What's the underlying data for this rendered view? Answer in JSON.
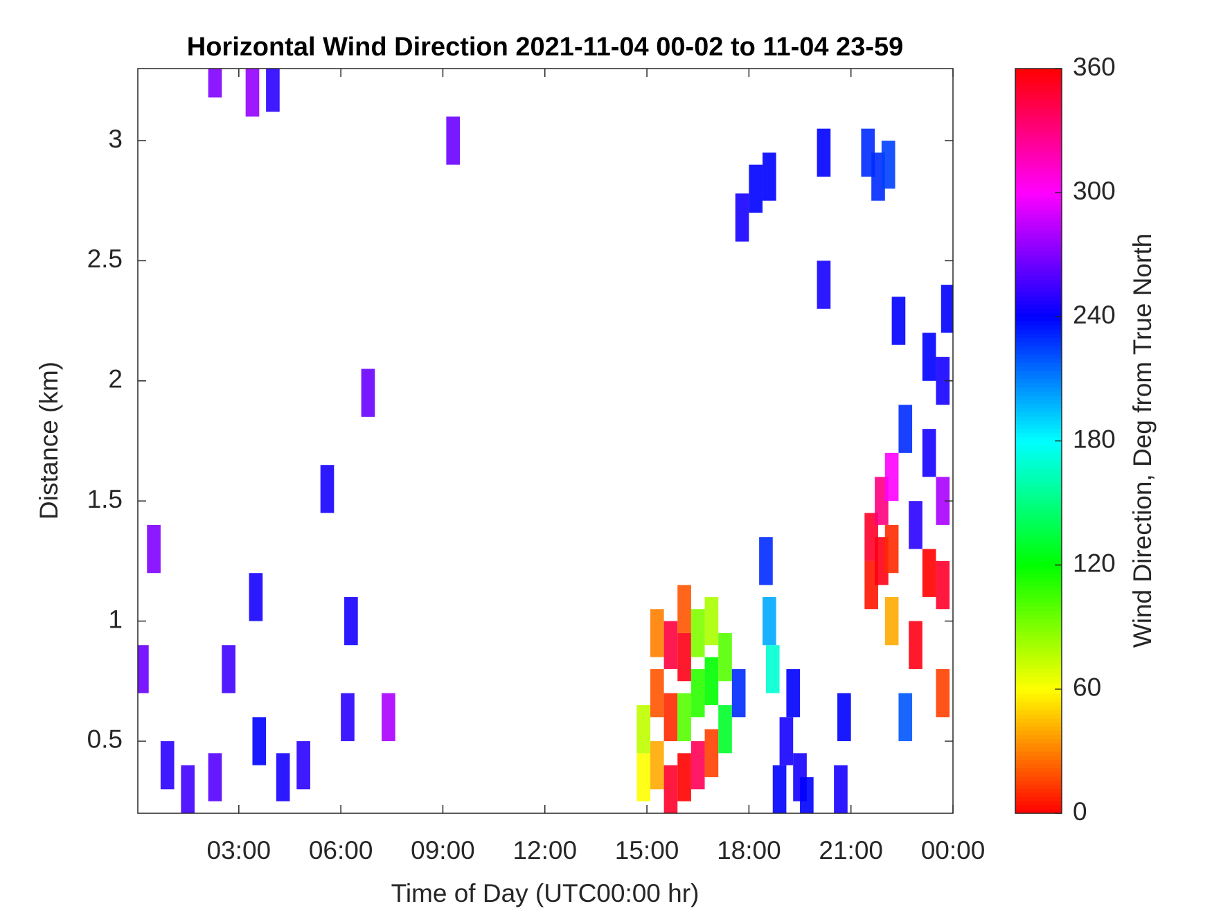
{
  "chart_data": {
    "type": "heatmap",
    "title": "Horizontal Wind Direction 2021-11-04 00-02 to 11-04 23-59",
    "xlabel": "Time of Day (UTC00:00 hr)",
    "ylabel": "Distance (km)",
    "colorbar_label": "Wind Direction, Deg from True North",
    "colormap": "hsv",
    "xlim": [
      0.03,
      24
    ],
    "xticks": [
      {
        "value": 3,
        "label": "03:00"
      },
      {
        "value": 6,
        "label": "06:00"
      },
      {
        "value": 9,
        "label": "09:00"
      },
      {
        "value": 12,
        "label": "12:00"
      },
      {
        "value": 15,
        "label": "15:00"
      },
      {
        "value": 18,
        "label": "18:00"
      },
      {
        "value": 21,
        "label": "21:00"
      },
      {
        "value": 24,
        "label": "00:00"
      }
    ],
    "ylim": [
      0.2,
      3.3
    ],
    "yticks": [
      0.5,
      1,
      1.5,
      2,
      2.5,
      3
    ],
    "clim": [
      0,
      360
    ],
    "cticks": [
      0,
      60,
      120,
      180,
      240,
      300,
      360
    ],
    "x": [
      0.15,
      0.5,
      0.9,
      1.5,
      2.3,
      2.7,
      3.5,
      3.6,
      4.3,
      4.9,
      5.6,
      6.2,
      6.3,
      6.8,
      7.4,
      2.3,
      3.4,
      4.0,
      9.3,
      14.9,
      14.9,
      15.3,
      15.3,
      15.3,
      15.7,
      15.7,
      15.7,
      16.1,
      16.1,
      16.1,
      16.1,
      16.5,
      16.5,
      16.5,
      16.9,
      16.9,
      16.9,
      17.3,
      17.3,
      17.7,
      18.5,
      18.6,
      18.7,
      18.9,
      19.1,
      19.3,
      19.5,
      19.7,
      20.7,
      20.8,
      17.8,
      18.2,
      18.6,
      20.2,
      20.2,
      21.5,
      21.8,
      22.1,
      21.6,
      21.6,
      21.9,
      21.9,
      22.2,
      22.2,
      22.2,
      22.4,
      22.6,
      22.6,
      22.9,
      22.9,
      23.3,
      23.3,
      23.3,
      23.7,
      23.7,
      23.7,
      23.7,
      23.85
    ],
    "y": [
      0.8,
      1.3,
      0.4,
      0.3,
      0.35,
      0.8,
      1.1,
      0.5,
      0.35,
      0.4,
      1.55,
      0.6,
      1.0,
      1.95,
      0.6,
      3.28,
      3.2,
      3.22,
      3.0,
      0.35,
      0.55,
      0.4,
      0.7,
      0.95,
      0.3,
      0.6,
      0.9,
      0.35,
      0.6,
      0.85,
      1.05,
      0.4,
      0.7,
      0.95,
      0.45,
      0.75,
      1.0,
      0.55,
      0.85,
      0.7,
      1.25,
      1.0,
      0.8,
      0.3,
      0.5,
      0.7,
      0.35,
      0.25,
      0.3,
      0.6,
      2.68,
      2.8,
      2.85,
      2.4,
      2.95,
      2.95,
      2.85,
      2.9,
      1.35,
      1.15,
      1.5,
      1.25,
      1.6,
      1.3,
      1.0,
      2.25,
      1.8,
      0.6,
      1.4,
      0.9,
      1.7,
      2.1,
      1.2,
      2.0,
      1.5,
      1.15,
      0.7,
      2.3
    ],
    "values": [
      265,
      270,
      250,
      255,
      260,
      255,
      245,
      240,
      245,
      250,
      245,
      250,
      245,
      265,
      280,
      270,
      275,
      250,
      265,
      60,
      75,
      40,
      20,
      30,
      350,
      10,
      345,
      0,
      100,
      355,
      20,
      340,
      110,
      90,
      15,
      120,
      80,
      130,
      100,
      230,
      230,
      200,
      170,
      240,
      245,
      240,
      245,
      240,
      245,
      240,
      245,
      240,
      240,
      245,
      240,
      230,
      230,
      225,
      350,
      5,
      330,
      355,
      300,
      10,
      40,
      240,
      230,
      220,
      250,
      355,
      245,
      240,
      0,
      245,
      280,
      350,
      15,
      240
    ]
  }
}
